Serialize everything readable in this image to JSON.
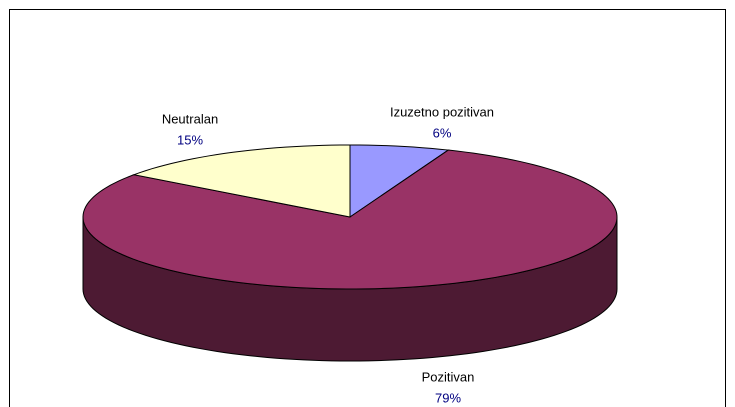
{
  "chart_data": {
    "type": "pie",
    "categories": [
      "Izuzetno pozitivan",
      "Pozitivan",
      "Neutralan"
    ],
    "values": [
      6,
      79,
      15
    ],
    "value_labels": [
      "6%",
      "79%",
      "15%"
    ],
    "colors": [
      "#9999ff",
      "#993366",
      "#ffffcc"
    ]
  }
}
